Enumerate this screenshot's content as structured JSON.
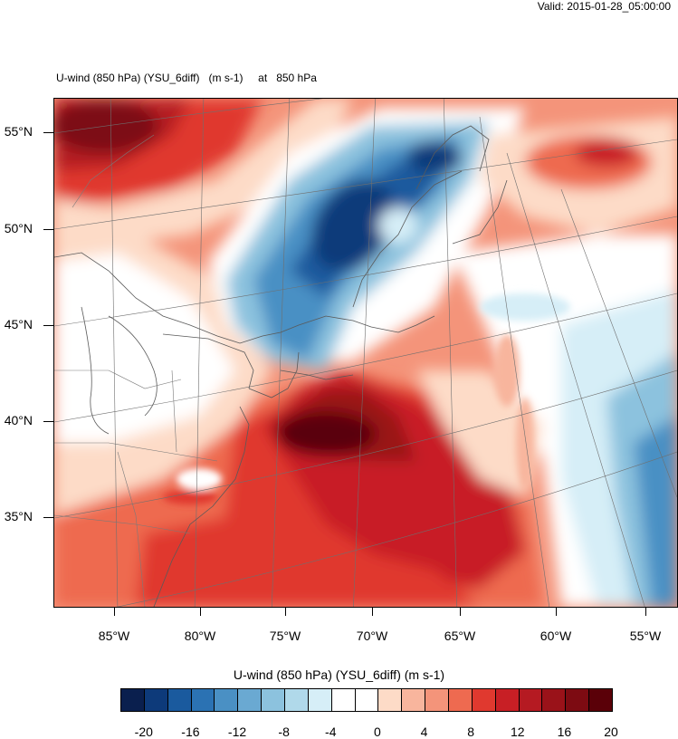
{
  "valid_text": "Valid: 2015-01-28_05:00:00",
  "plot_title": "U-wind (850 hPa) (YSU_6diff)   (m s-1)     at   850 hPa",
  "lat_labels": [
    "55°N",
    "50°N",
    "45°N",
    "40°N",
    "35°N"
  ],
  "lon_labels": [
    "85°W",
    "80°W",
    "75°W",
    "70°W",
    "65°W",
    "60°W",
    "55°W"
  ],
  "colorbar": {
    "title": "U-wind (850 hPa) (YSU_6diff)  (m s-1)",
    "labels": [
      "-20",
      "-16",
      "-12",
      "-8",
      "-4",
      "0",
      "4",
      "8",
      "12",
      "16",
      "20"
    ],
    "colors": [
      "#0a1f4e",
      "#0d3a7a",
      "#1a5a9e",
      "#2b72b3",
      "#4a90c4",
      "#6aa9d2",
      "#8cc2de",
      "#b0d9ea",
      "#d6eef7",
      "#ffffff",
      "#ffffff",
      "#fddbc7",
      "#f8b59d",
      "#f4947a",
      "#ee6a50",
      "#e0392f",
      "#c81f25",
      "#b51a22",
      "#9a1219",
      "#7d0b12",
      "#5a0008"
    ]
  },
  "colors": {
    "deep_red": "#7d0b12",
    "red": "#d9342b",
    "light_red": "#f4947a",
    "pink": "#fddbc7",
    "white": "#ffffff",
    "light_blue": "#b0d9ea",
    "blue": "#4a90c4",
    "deep_blue": "#0d3a7a"
  }
}
